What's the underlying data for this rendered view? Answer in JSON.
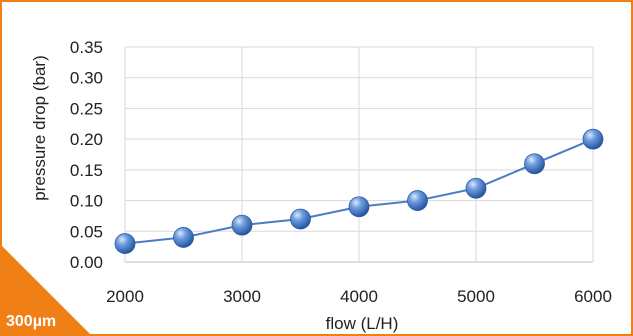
{
  "badge": {
    "text": "300µm",
    "color": "#f07f16"
  },
  "frame_color": "#f07f16",
  "chart_data": {
    "type": "line",
    "title": "",
    "xlabel": "flow (L/H)",
    "ylabel": "pressure drop (bar)",
    "x": [
      2000,
      2500,
      3000,
      3500,
      4000,
      4500,
      5000,
      5500,
      6000
    ],
    "x_ticks": [
      2000,
      3000,
      4000,
      5000,
      6000
    ],
    "x_tick_labels": [
      "2000",
      "3000",
      "4000",
      "5000",
      "6000"
    ],
    "y_ticks": [
      0,
      0.05,
      0.1,
      0.15,
      0.2,
      0.25,
      0.3,
      0.35
    ],
    "y_tick_labels": [
      "0.00",
      "0.05",
      "0.10",
      "0.15",
      "0.20",
      "0.25",
      "0.30",
      "0.35"
    ],
    "xlim": [
      2000,
      6000
    ],
    "ylim": [
      0,
      0.35
    ],
    "grid": true,
    "legend": "none",
    "series": [
      {
        "values": [
          0.03,
          0.04,
          0.06,
          0.07,
          0.09,
          0.1,
          0.12,
          0.16,
          0.2
        ],
        "color": "#4a7bc4"
      }
    ]
  }
}
